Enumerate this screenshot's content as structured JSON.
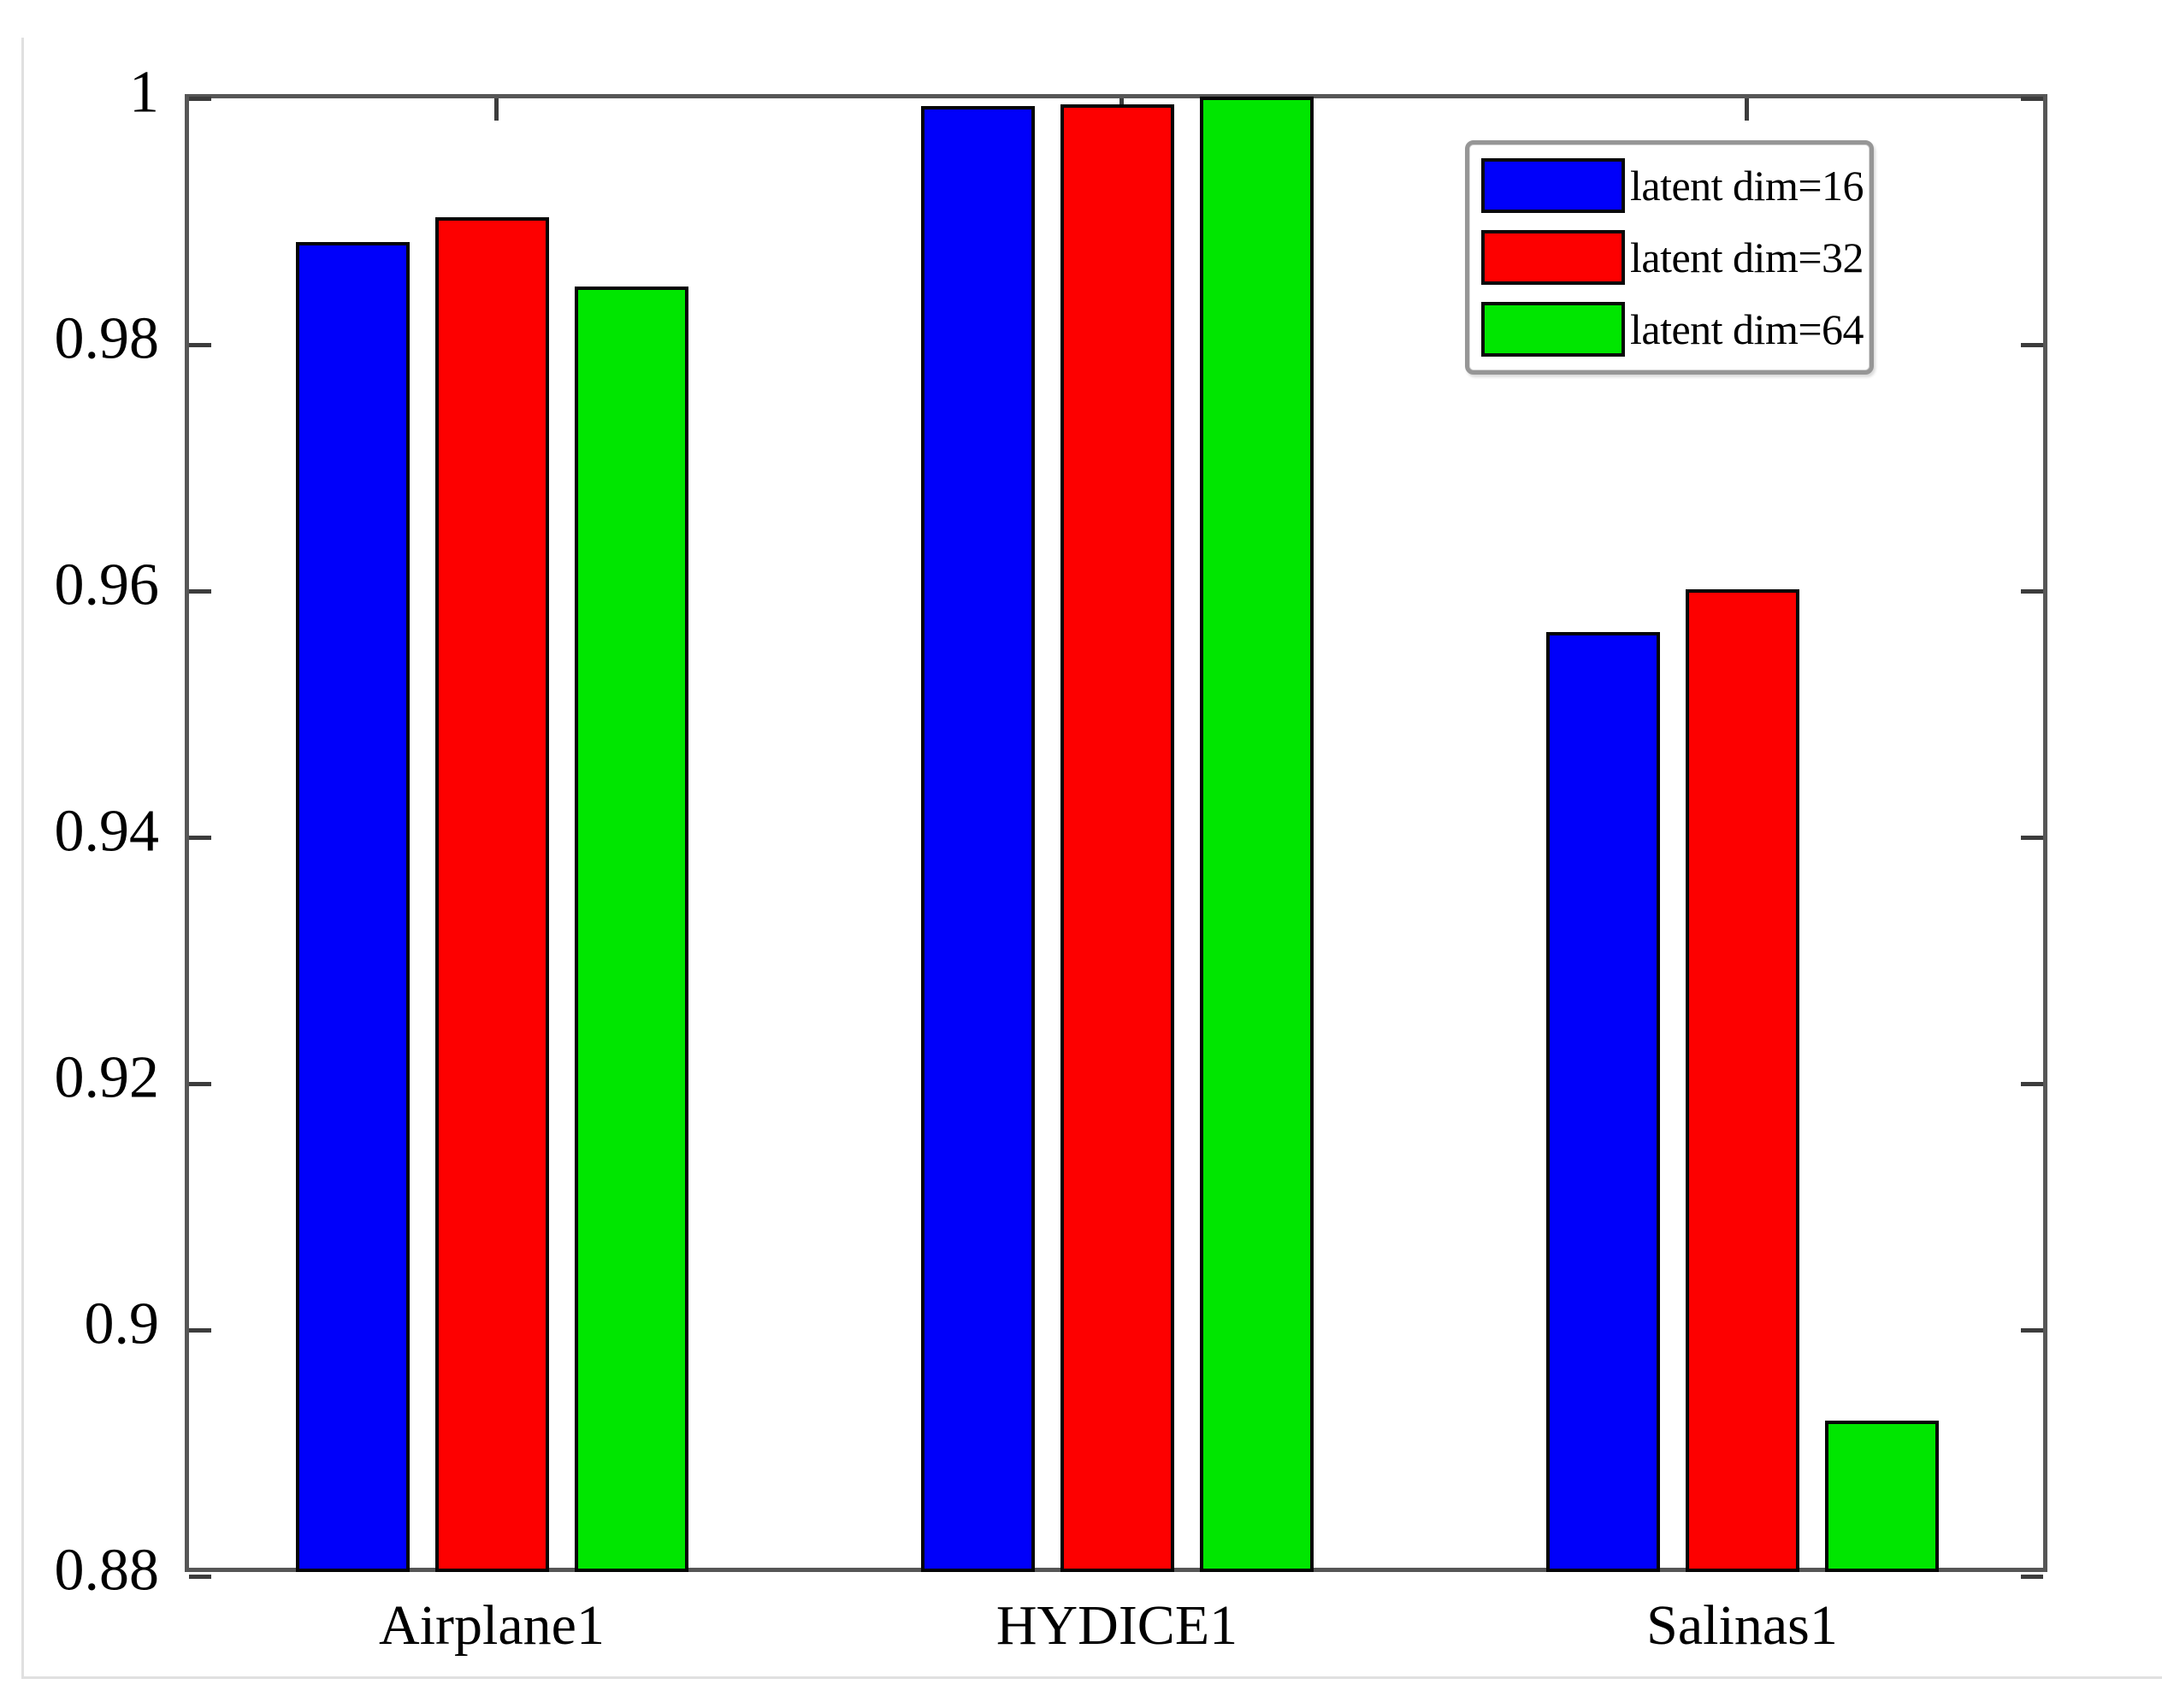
{
  "figure": {
    "background": "#ffffff",
    "page_border_color": "#e0e0e0",
    "axis_color": "#565656",
    "tick_color": "#3c3c3c"
  },
  "chart_data": {
    "type": "bar",
    "title": "",
    "xlabel": "",
    "ylabel": "",
    "categories": [
      "Airplane1",
      "HYDICE1",
      "Salinas1"
    ],
    "series": [
      {
        "name": "latent dim=16",
        "color": "#0000fa",
        "values": [
          0.988,
          0.999,
          0.9563
        ]
      },
      {
        "name": "latent dim=32",
        "color": "#fd0000",
        "values": [
          0.99,
          0.9992,
          0.9598
        ]
      },
      {
        "name": "latent dim=64",
        "color": "#00e600",
        "values": [
          0.9844,
          0.9998,
          0.8923
        ]
      }
    ],
    "bar_border_color": "#060606",
    "ylim": [
      0.88,
      1.0
    ],
    "yticks": [
      {
        "label": "1",
        "value": 1.0
      },
      {
        "label": "0.98",
        "value": 0.98
      },
      {
        "label": "0.96",
        "value": 0.96
      },
      {
        "label": "0.94",
        "value": 0.94
      },
      {
        "label": "0.92",
        "value": 0.92
      },
      {
        "label": "0.9",
        "value": 0.9
      },
      {
        "label": "0.88",
        "value": 0.88
      }
    ],
    "grid": false,
    "legend_position": "top-right"
  }
}
